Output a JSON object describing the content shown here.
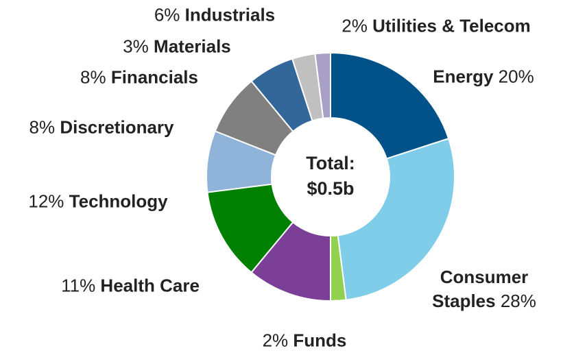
{
  "chart_data": {
    "type": "donut",
    "categories": [
      "Energy",
      "Consumer Staples",
      "Funds",
      "Health Care",
      "Technology",
      "Discretionary",
      "Financials",
      "Industrials",
      "Materials",
      "Utilities & Telecom"
    ],
    "values": [
      20,
      28,
      2,
      11,
      12,
      8,
      8,
      6,
      3,
      2
    ],
    "value_labels": [
      "20%",
      "28%",
      "2%",
      "11%",
      "12%",
      "8%",
      "8%",
      "6%",
      "3%",
      "2%"
    ],
    "colors": [
      "#005288",
      "#7fcde8",
      "#92d050",
      "#7b3f98",
      "#008000",
      "#8fb3d9",
      "#808080",
      "#336699",
      "#c0c0c0",
      "#a9a0c8"
    ],
    "center_label": [
      "Total:",
      "$0.5b"
    ]
  }
}
